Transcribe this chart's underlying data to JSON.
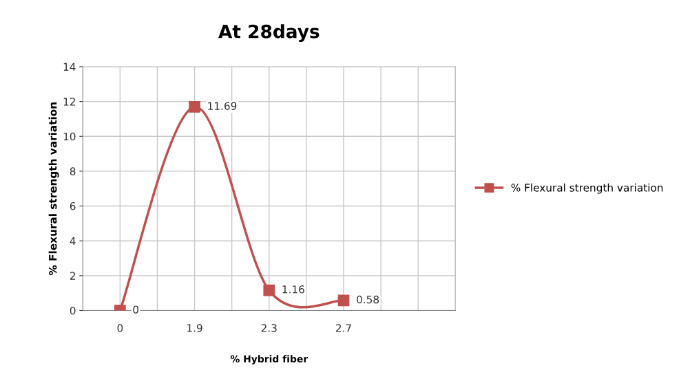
{
  "chart_data": {
    "type": "line",
    "title": "At 28days",
    "xlabel": "% Hybrid fiber",
    "ylabel": "% Flexural strength variation",
    "categories": [
      "0",
      "1.9",
      "2.3",
      "2.7",
      null
    ],
    "series": [
      {
        "name": "% Flexural strength variation",
        "color": "#c0504d",
        "values": [
          0,
          11.69,
          1.16,
          0.58,
          null
        ]
      }
    ],
    "ylim": [
      0,
      14
    ],
    "yticks": [
      0,
      2,
      4,
      6,
      8,
      10,
      12,
      14
    ],
    "grid": true,
    "legend": "right",
    "marker": "square",
    "line_style": "solid",
    "data_labels": true
  }
}
